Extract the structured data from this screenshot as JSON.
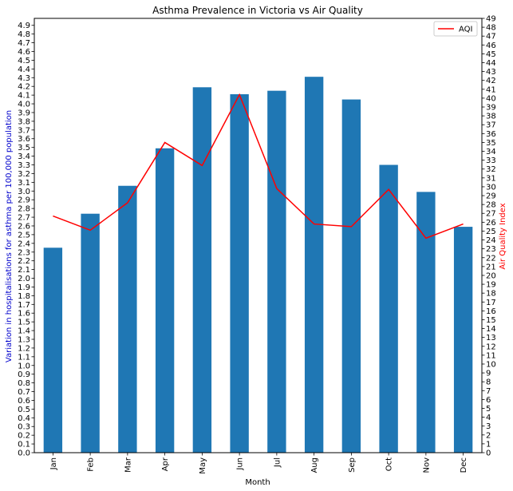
{
  "chart_data": {
    "type": "bar",
    "title": "Asthma Prevalence in Victoria vs Air Quality",
    "xlabel": "Month",
    "ylabel": "Variation in hospitalisations for asthma per 100,000 population",
    "y2label": "Air Quality Index",
    "categories": [
      "Jan",
      "Feb",
      "Mar",
      "Apr",
      "May",
      "Jun",
      "Jul",
      "Aug",
      "Sep",
      "Oct",
      "Nov",
      "Dec"
    ],
    "series": [
      {
        "type": "bar",
        "values": [
          2.35,
          2.74,
          3.06,
          3.49,
          4.19,
          4.11,
          4.15,
          4.31,
          4.05,
          3.3,
          2.99,
          2.59
        ],
        "color": "#1f77b4",
        "axis": "left"
      },
      {
        "name": "AQI",
        "type": "line",
        "values": [
          26.7,
          25.1,
          28.2,
          35.0,
          32.4,
          40.4,
          29.8,
          25.8,
          25.5,
          29.7,
          24.2,
          25.8
        ],
        "color": "#ff0000",
        "axis": "right"
      }
    ],
    "ylim": [
      0,
      4.98
    ],
    "y2lim": [
      0,
      49
    ],
    "yticks_step": 0.1,
    "y2ticks_step": 1,
    "legend": "top-right",
    "grid": false
  }
}
